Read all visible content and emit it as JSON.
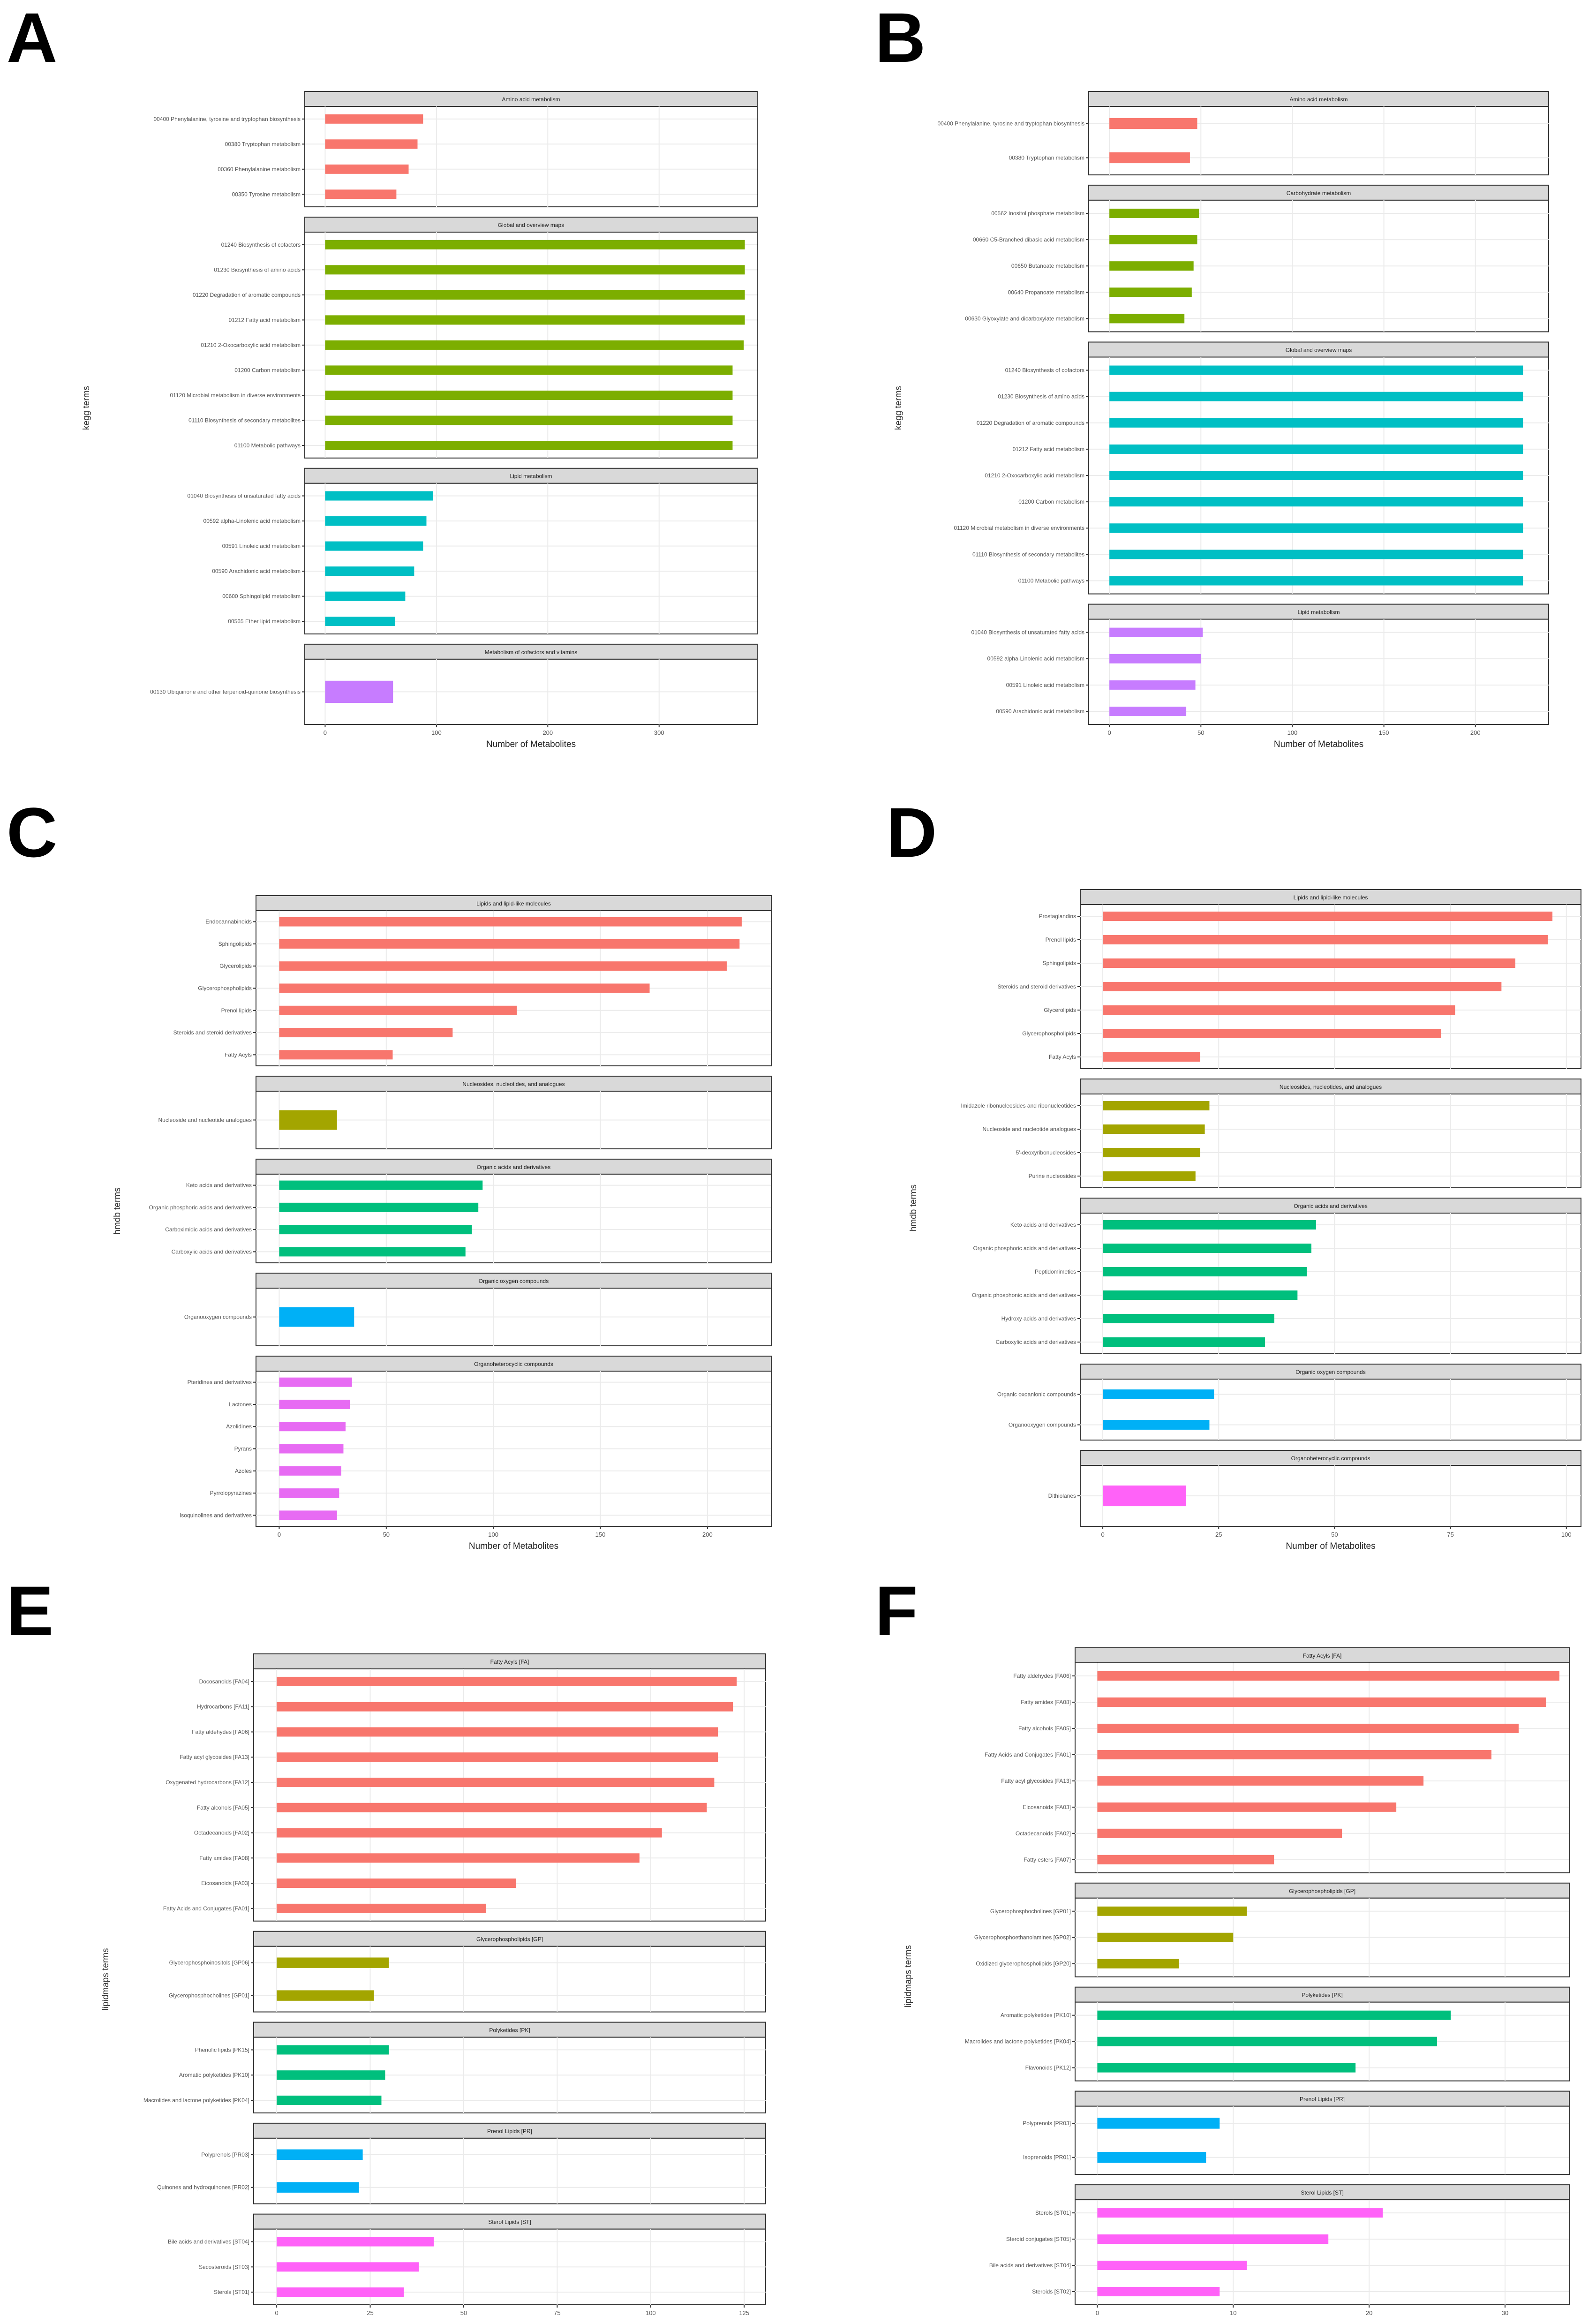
{
  "panels": [
    {
      "letter": "A",
      "ylabel": "kegg terms",
      "xlabel": "Number of Metabolites"
    },
    {
      "letter": "B",
      "ylabel": "kegg terms",
      "xlabel": "Number of Metabolites"
    },
    {
      "letter": "C",
      "ylabel": "hmdb terms",
      "xlabel": "Number of Metabolites"
    },
    {
      "letter": "D",
      "ylabel": "hmdb terms",
      "xlabel": "Number of Metabolites"
    },
    {
      "letter": "E",
      "ylabel": "lipidmaps terms",
      "xlabel": "Number of Metabolites"
    },
    {
      "letter": "F",
      "ylabel": "lipidmaps terms",
      "xlabel": "Number of Metabolites"
    }
  ],
  "chart_data": [
    {
      "type": "bar",
      "orientation": "horizontal",
      "panel": "A",
      "xlabel": "Number of Metabolites",
      "ylabel": "kegg terms",
      "xlim": [
        0,
        380
      ],
      "xticks": [
        0,
        100,
        200,
        300
      ],
      "facets": [
        {
          "title": "Amino acid metabolism",
          "color": "#F8766D",
          "bars": [
            {
              "label": "00400 Phenylalanine, tyrosine and tryptophan biosynthesis",
              "value": 88
            },
            {
              "label": "00380 Tryptophan metabolism",
              "value": 83
            },
            {
              "label": "00360 Phenylalanine metabolism",
              "value": 75
            },
            {
              "label": "00350 Tyrosine metabolism",
              "value": 64
            }
          ]
        },
        {
          "title": "Global and overview maps",
          "color": "#7CAE00",
          "bars": [
            {
              "label": "01240 Biosynthesis of cofactors",
              "value": 377
            },
            {
              "label": "01230 Biosynthesis of amino acids",
              "value": 377
            },
            {
              "label": "01220 Degradation of aromatic compounds",
              "value": 377
            },
            {
              "label": "01212 Fatty acid metabolism",
              "value": 377
            },
            {
              "label": "01210 2-Oxocarboxylic acid metabolism",
              "value": 376
            },
            {
              "label": "01200 Carbon metabolism",
              "value": 366
            },
            {
              "label": "01120 Microbial metabolism in diverse environments",
              "value": 366
            },
            {
              "label": "01110 Biosynthesis of secondary metabolites",
              "value": 366
            },
            {
              "label": "01100 Metabolic pathways",
              "value": 366
            }
          ]
        },
        {
          "title": "Lipid metabolism",
          "color": "#00BFC4",
          "bars": [
            {
              "label": "01040 Biosynthesis of unsaturated fatty acids",
              "value": 97
            },
            {
              "label": "00592 alpha-Linolenic acid metabolism",
              "value": 91
            },
            {
              "label": "00591 Linoleic acid metabolism",
              "value": 88
            },
            {
              "label": "00590 Arachidonic acid metabolism",
              "value": 80
            },
            {
              "label": "00600 Sphingolipid metabolism",
              "value": 72
            },
            {
              "label": "00565 Ether lipid metabolism",
              "value": 63
            }
          ]
        },
        {
          "title": "Metabolism of cofactors and vitamins",
          "color": "#C77CFF",
          "bars": [
            {
              "label": "00130 Ubiquinone and other terpenoid-quinone biosynthesis",
              "value": 61
            }
          ]
        }
      ]
    },
    {
      "type": "bar",
      "orientation": "horizontal",
      "panel": "B",
      "xlabel": "Number of Metabolites",
      "ylabel": "kegg terms",
      "xlim": [
        0,
        235
      ],
      "xticks": [
        0,
        50,
        100,
        150,
        200
      ],
      "facets": [
        {
          "title": "Amino acid metabolism",
          "color": "#F8766D",
          "bars": [
            {
              "label": "00400 Phenylalanine, tyrosine and tryptophan biosynthesis",
              "value": 48
            },
            {
              "label": "00380 Tryptophan metabolism",
              "value": 44
            }
          ]
        },
        {
          "title": "Carbohydrate metabolism",
          "color": "#7CAE00",
          "bars": [
            {
              "label": "00562 Inositol phosphate metabolism",
              "value": 49
            },
            {
              "label": "00660 C5-Branched dibasic acid metabolism",
              "value": 48
            },
            {
              "label": "00650 Butanoate metabolism",
              "value": 46
            },
            {
              "label": "00640 Propanoate metabolism",
              "value": 45
            },
            {
              "label": "00630 Glyoxylate and dicarboxylate metabolism",
              "value": 41
            }
          ]
        },
        {
          "title": "Global and overview maps",
          "color": "#00BFC4",
          "bars": [
            {
              "label": "01240 Biosynthesis of cofactors",
              "value": 226
            },
            {
              "label": "01230 Biosynthesis of amino acids",
              "value": 226
            },
            {
              "label": "01220 Degradation of aromatic compounds",
              "value": 226
            },
            {
              "label": "01212 Fatty acid metabolism",
              "value": 226
            },
            {
              "label": "01210 2-Oxocarboxylic acid metabolism",
              "value": 226
            },
            {
              "label": "01200 Carbon metabolism",
              "value": 226
            },
            {
              "label": "01120 Microbial metabolism in diverse environments",
              "value": 226
            },
            {
              "label": "01110 Biosynthesis of secondary metabolites",
              "value": 226
            },
            {
              "label": "01100 Metabolic pathways",
              "value": 226
            }
          ]
        },
        {
          "title": "Lipid metabolism",
          "color": "#C77CFF",
          "bars": [
            {
              "label": "01040 Biosynthesis of unsaturated fatty acids",
              "value": 51
            },
            {
              "label": "00592 alpha-Linolenic acid metabolism",
              "value": 50
            },
            {
              "label": "00591 Linoleic acid metabolism",
              "value": 47
            },
            {
              "label": "00590 Arachidonic acid metabolism",
              "value": 42
            }
          ]
        }
      ]
    },
    {
      "type": "bar",
      "orientation": "horizontal",
      "panel": "C",
      "xlabel": "Number of Metabolites",
      "ylabel": "hmdb terms",
      "xlim": [
        0,
        225
      ],
      "xticks": [
        0,
        50,
        100,
        150,
        200
      ],
      "facets": [
        {
          "title": "Lipids and lipid-like molecules",
          "color": "#F8766D",
          "bars": [
            {
              "label": "Endocannabinoids",
              "value": 216
            },
            {
              "label": "Sphingolipids",
              "value": 215
            },
            {
              "label": "Glycerolipids",
              "value": 209
            },
            {
              "label": "Glycerophospholipids",
              "value": 173
            },
            {
              "label": "Prenol lipids",
              "value": 111
            },
            {
              "label": "Steroids and steroid derivatives",
              "value": 81
            },
            {
              "label": "Fatty Acyls",
              "value": 53
            }
          ]
        },
        {
          "title": "Nucleosides, nucleotides, and analogues",
          "color": "#A3A500",
          "bars": [
            {
              "label": "Nucleoside and nucleotide analogues",
              "value": 27
            }
          ]
        },
        {
          "title": "Organic acids and derivatives",
          "color": "#00BF7D",
          "bars": [
            {
              "label": "Keto acids and derivatives",
              "value": 95
            },
            {
              "label": "Organic phosphoric acids and derivatives",
              "value": 93
            },
            {
              "label": "Carboximidic acids and derivatives",
              "value": 90
            },
            {
              "label": "Carboxylic acids and derivatives",
              "value": 87
            }
          ]
        },
        {
          "title": "Organic oxygen compounds",
          "color": "#00B0F6",
          "bars": [
            {
              "label": "Organooxygen compounds",
              "value": 35
            }
          ]
        },
        {
          "title": "Organoheterocyclic compounds",
          "color": "#E76BF3",
          "bars": [
            {
              "label": "Pteridines and derivatives",
              "value": 34
            },
            {
              "label": "Lactones",
              "value": 33
            },
            {
              "label": "Azolidines",
              "value": 31
            },
            {
              "label": "Pyrans",
              "value": 30
            },
            {
              "label": "Azoles",
              "value": 29
            },
            {
              "label": "Pyrrolopyrazines",
              "value": 28
            },
            {
              "label": "Isoquinolines and derivatives",
              "value": 27
            }
          ]
        }
      ]
    },
    {
      "type": "bar",
      "orientation": "horizontal",
      "panel": "D",
      "xlabel": "Number of Metabolites",
      "ylabel": "hmdb terms",
      "xlim": [
        0,
        101
      ],
      "xticks": [
        0,
        25,
        50,
        75,
        100
      ],
      "facets": [
        {
          "title": "Lipids and lipid-like molecules",
          "color": "#F8766D",
          "bars": [
            {
              "label": "Prostaglandins",
              "value": 97
            },
            {
              "label": "Prenol lipids",
              "value": 96
            },
            {
              "label": "Sphingolipids",
              "value": 89
            },
            {
              "label": "Steroids and steroid derivatives",
              "value": 86
            },
            {
              "label": "Glycerolipids",
              "value": 76
            },
            {
              "label": "Glycerophospholipids",
              "value": 73
            },
            {
              "label": "Fatty Acyls",
              "value": 21
            }
          ]
        },
        {
          "title": "Nucleosides, nucleotides, and analogues",
          "color": "#A3A500",
          "bars": [
            {
              "label": "Imidazole ribonucleosides and ribonucleotides",
              "value": 23
            },
            {
              "label": "Nucleoside and nucleotide analogues",
              "value": 22
            },
            {
              "label": "5'-deoxyribonucleosides",
              "value": 21
            },
            {
              "label": "Purine nucleosides",
              "value": 20
            }
          ]
        },
        {
          "title": "Organic acids and derivatives",
          "color": "#00BF7D",
          "bars": [
            {
              "label": "Keto acids and derivatives",
              "value": 46
            },
            {
              "label": "Organic phosphoric acids and derivatives",
              "value": 45
            },
            {
              "label": "Peptidomimetics",
              "value": 44
            },
            {
              "label": "Organic phosphonic acids and derivatives",
              "value": 42
            },
            {
              "label": "Hydroxy acids and derivatives",
              "value": 37
            },
            {
              "label": "Carboxylic acids and derivatives",
              "value": 35
            }
          ]
        },
        {
          "title": "Organic oxygen compounds",
          "color": "#00B0F6",
          "bars": [
            {
              "label": "Organic oxoanionic compounds",
              "value": 24
            },
            {
              "label": "Organooxygen compounds",
              "value": 23
            }
          ]
        },
        {
          "title": "Organoheterocyclic compounds",
          "color": "#FF62F8",
          "bars": [
            {
              "label": "Dithiolanes",
              "value": 18
            }
          ]
        }
      ]
    },
    {
      "type": "bar",
      "orientation": "horizontal",
      "panel": "E",
      "xlabel": "Number of Metabolites",
      "ylabel": "lipidmaps terms",
      "xlim": [
        0,
        128
      ],
      "xticks": [
        0,
        25,
        50,
        75,
        100,
        125
      ],
      "facets": [
        {
          "title": "Fatty Acyls [FA]",
          "color": "#F8766D",
          "bars": [
            {
              "label": "Docosanoids [FA04]",
              "value": 123
            },
            {
              "label": "Hydrocarbons [FA11]",
              "value": 122
            },
            {
              "label": "Fatty aldehydes [FA06]",
              "value": 118
            },
            {
              "label": "Fatty acyl glycosides [FA13]",
              "value": 118
            },
            {
              "label": "Oxygenated hydrocarbons [FA12]",
              "value": 117
            },
            {
              "label": "Fatty alcohols [FA05]",
              "value": 115
            },
            {
              "label": "Octadecanoids [FA02]",
              "value": 103
            },
            {
              "label": "Fatty amides [FA08]",
              "value": 97
            },
            {
              "label": "Eicosanoids [FA03]",
              "value": 64
            },
            {
              "label": "Fatty Acids and Conjugates [FA01]",
              "value": 56
            }
          ]
        },
        {
          "title": "Glycerophospholipids [GP]",
          "color": "#A3A500",
          "bars": [
            {
              "label": "Glycerophosphoinositols [GP06]",
              "value": 30
            },
            {
              "label": "Glycerophosphocholines [GP01]",
              "value": 26
            }
          ]
        },
        {
          "title": "Polyketides [PK]",
          "color": "#00BF7D",
          "bars": [
            {
              "label": "Phenolic lipids [PK15]",
              "value": 30
            },
            {
              "label": "Aromatic polyketides [PK10]",
              "value": 29
            },
            {
              "label": "Macrolides and lactone polyketides [PK04]",
              "value": 28
            }
          ]
        },
        {
          "title": "Prenol Lipids [PR]",
          "color": "#00B0F6",
          "bars": [
            {
              "label": "Polyprenols [PR03]",
              "value": 23
            },
            {
              "label": "Quinones and hydroquinones [PR02]",
              "value": 22
            }
          ]
        },
        {
          "title": "Sterol Lipids [ST]",
          "color": "#FF62F8",
          "bars": [
            {
              "label": "Bile acids and derivatives [ST04]",
              "value": 42
            },
            {
              "label": "Secosteroids [ST03]",
              "value": 38
            },
            {
              "label": "Sterols [ST01]",
              "value": 34
            }
          ]
        }
      ]
    },
    {
      "type": "bar",
      "orientation": "horizontal",
      "panel": "F",
      "xlabel": "Number of Metabolites",
      "ylabel": "lipidmaps terms",
      "xlim": [
        0,
        34
      ],
      "xticks": [
        0,
        10,
        20,
        30
      ],
      "facets": [
        {
          "title": "Fatty Acyls [FA]",
          "color": "#F8766D",
          "bars": [
            {
              "label": "Fatty aldehydes [FA06]",
              "value": 34
            },
            {
              "label": "Fatty amides [FA08]",
              "value": 33
            },
            {
              "label": "Fatty alcohols [FA05]",
              "value": 31
            },
            {
              "label": "Fatty Acids and Conjugates [FA01]",
              "value": 29
            },
            {
              "label": "Fatty acyl glycosides [FA13]",
              "value": 24
            },
            {
              "label": "Eicosanoids [FA03]",
              "value": 22
            },
            {
              "label": "Octadecanoids [FA02]",
              "value": 18
            },
            {
              "label": "Fatty esters [FA07]",
              "value": 13
            }
          ]
        },
        {
          "title": "Glycerophospholipids [GP]",
          "color": "#A3A500",
          "bars": [
            {
              "label": "Glycerophosphocholines [GP01]",
              "value": 11
            },
            {
              "label": "Glycerophosphoethanolamines [GP02]",
              "value": 10
            },
            {
              "label": "Oxidized glycerophospholipids [GP20]",
              "value": 6
            }
          ]
        },
        {
          "title": "Polyketides [PK]",
          "color": "#00BF7D",
          "bars": [
            {
              "label": "Aromatic polyketides [PK10]",
              "value": 26
            },
            {
              "label": "Macrolides and lactone polyketides [PK04]",
              "value": 25
            },
            {
              "label": "Flavonoids [PK12]",
              "value": 19
            }
          ]
        },
        {
          "title": "Prenol Lipids [PR]",
          "color": "#00B0F6",
          "bars": [
            {
              "label": "Polyprenols [PR03]",
              "value": 9
            },
            {
              "label": "Isoprenoids [PR01]",
              "value": 8
            }
          ]
        },
        {
          "title": "Sterol Lipids [ST]",
          "color": "#FF62F8",
          "bars": [
            {
              "label": "Sterols [ST01]",
              "value": 21
            },
            {
              "label": "Steroid conjugates [ST05]",
              "value": 17
            },
            {
              "label": "Bile acids and derivatives [ST04]",
              "value": 11
            },
            {
              "label": "Steroids [ST02]",
              "value": 9
            }
          ]
        }
      ]
    }
  ]
}
